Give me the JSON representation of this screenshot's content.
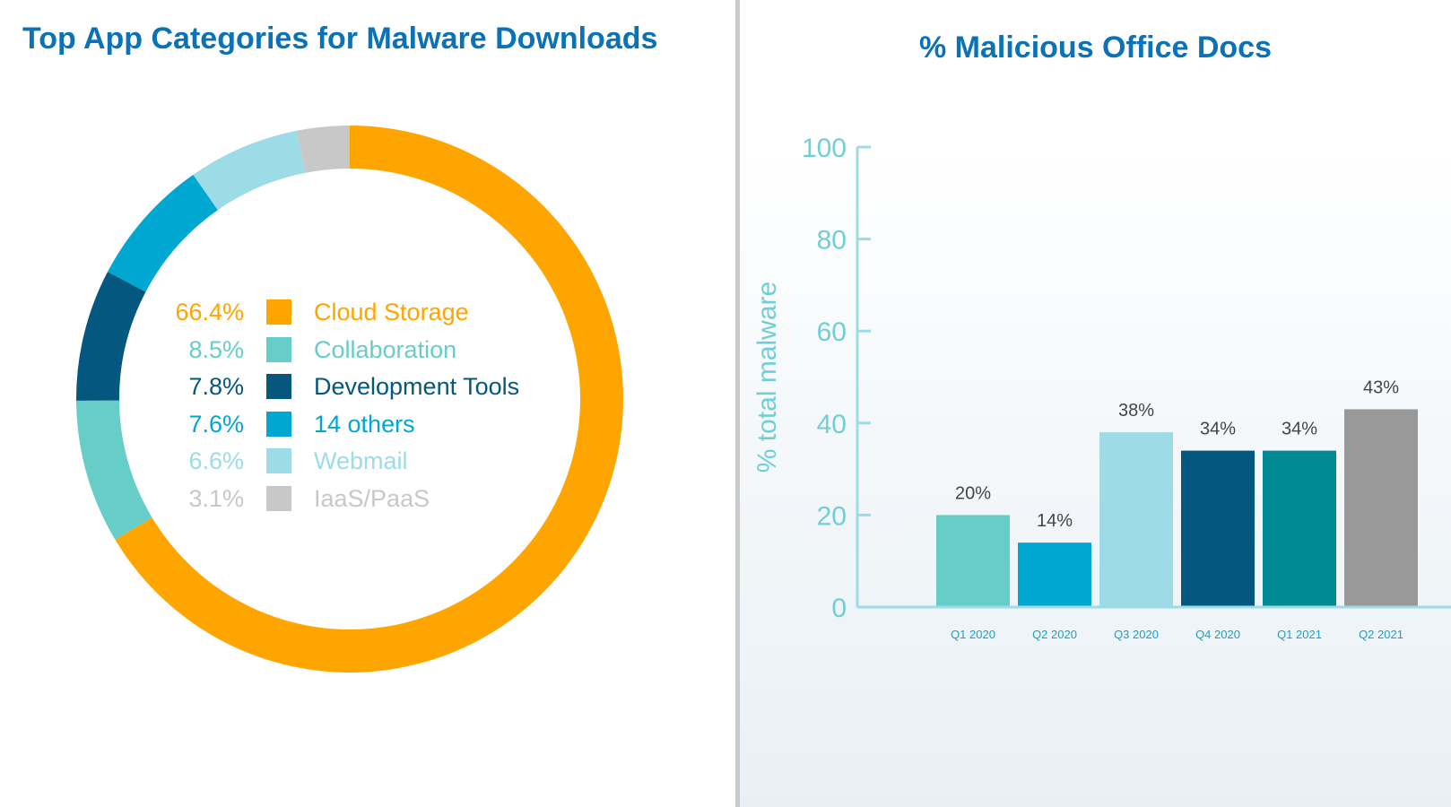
{
  "chart_data": [
    {
      "type": "pie",
      "title": "Top App Categories for Malware Downloads",
      "categories": [
        "Cloud Storage",
        "Collaboration",
        "Development Tools",
        "14 others",
        "Webmail",
        "IaaS/PaaS"
      ],
      "values": [
        66.4,
        8.5,
        7.8,
        7.6,
        6.6,
        3.1
      ],
      "value_labels": [
        "66.4%",
        "8.5%",
        "7.8%",
        "7.6%",
        "6.6%",
        "3.1%"
      ],
      "colors": [
        "#ffa500",
        "#66cdc8",
        "#04577f",
        "#00a7d1",
        "#9ddbe7",
        "#c8c8c8"
      ],
      "legend_position": "center"
    },
    {
      "type": "bar",
      "title": "% Malicious Office Docs",
      "ylabel": "% total malware",
      "xlabel": "",
      "categories": [
        "Q1 2020",
        "Q2 2020",
        "Q3 2020",
        "Q4 2020",
        "Q1 2021",
        "Q2 2021"
      ],
      "values": [
        20,
        14,
        38,
        34,
        34,
        43
      ],
      "value_labels": [
        "20%",
        "14%",
        "38%",
        "34%",
        "34%",
        "43%"
      ],
      "colors": [
        "#66cdc8",
        "#00a7d1",
        "#9ddbe7",
        "#04577f",
        "#008b93",
        "#999999"
      ],
      "ylim": [
        0,
        100
      ],
      "yticks": [
        0,
        20,
        40,
        60,
        80,
        100
      ],
      "grid": false,
      "axis_color": "#9ddbe7"
    }
  ]
}
